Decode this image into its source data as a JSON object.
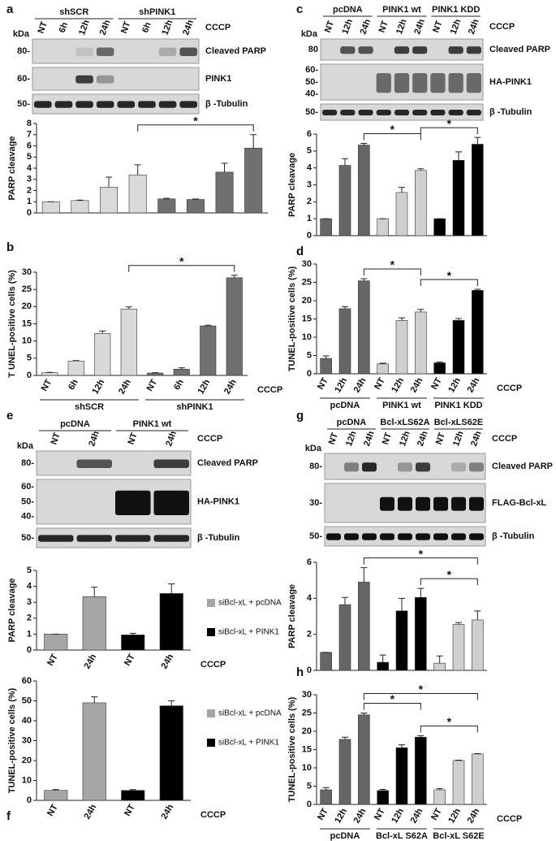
{
  "blots": [
    {
      "panel": "a",
      "kda": "kDa",
      "treatment": "CCCP",
      "headers": [
        "shSCR",
        "shPINK1"
      ],
      "lanes": [
        "NT",
        "6h",
        "12h",
        "24h",
        "NT",
        "6h",
        "12h",
        "24h"
      ],
      "rows": [
        {
          "label": "Cleaved PARP",
          "markers": [
            "80-"
          ]
        },
        {
          "label": "PINK1",
          "markers": [
            "60-"
          ]
        },
        {
          "label": "β -Tubulin",
          "markers": [
            "50-"
          ]
        }
      ]
    },
    {
      "panel": "c",
      "kda": "kDa",
      "treatment": "CCCP",
      "headers": [
        "pcDNA",
        "PINK1 wt",
        "PINK1 KDD"
      ],
      "lanes": [
        "NT",
        "12h",
        "24h",
        "NT",
        "12h",
        "24h",
        "NT",
        "12h",
        "24h"
      ],
      "rows": [
        {
          "label": "Cleaved PARP",
          "markers": [
            "80"
          ]
        },
        {
          "label": "HA-PINK1",
          "markers": [
            "60-",
            "50-",
            "40-"
          ]
        },
        {
          "label": "β -Tubulin",
          "markers": [
            "50-"
          ]
        }
      ]
    },
    {
      "panel": "e",
      "kda": "kDa",
      "treatment": "CCCP",
      "headers": [
        "pcDNA",
        "PINK1 wt"
      ],
      "lanes": [
        "NT",
        "24h",
        "NT",
        "24h"
      ],
      "rows": [
        {
          "label": "Cleaved PARP",
          "markers": [
            "80-"
          ]
        },
        {
          "label": "HA-PINK1",
          "markers": [
            "60-",
            "50-",
            "40-"
          ]
        },
        {
          "label": "β -Tubulin",
          "markers": [
            "50-"
          ]
        }
      ]
    },
    {
      "panel": "g",
      "kda": "kDa",
      "treatment": "CCCP",
      "headers": [
        "pcDNA",
        "Bcl-xLS62A",
        "Bcl-xLS62E"
      ],
      "lanes": [
        "NT",
        "12h",
        "24h",
        "NT",
        "12h",
        "24h",
        "NT",
        "12h",
        "24h"
      ],
      "rows": [
        {
          "label": "Cleaved PARP",
          "markers": [
            "80-"
          ]
        },
        {
          "label": "FLAG-Bcl-xL",
          "markers": [
            "30-"
          ]
        },
        {
          "label": "β -Tubulin",
          "markers": [
            "50-"
          ]
        }
      ]
    }
  ],
  "chart_data": [
    {
      "type": "bar",
      "ylabel": "PARP cleavage",
      "ylim": [
        0,
        8
      ],
      "yticks": [
        0,
        1,
        2,
        3,
        4,
        5,
        6,
        7,
        8
      ],
      "series": [
        {
          "color": "#d9d9d9",
          "values": [
            1,
            1.1,
            2.3,
            3.4
          ],
          "errors": [
            0,
            0.05,
            0.9,
            0.9
          ]
        },
        {
          "color": "#707070",
          "values": [
            1.25,
            1.2,
            3.65,
            5.8
          ],
          "errors": [
            0.05,
            0.05,
            0.8,
            1.2
          ]
        }
      ],
      "comparisons": [
        {
          "bars": [
            3,
            7
          ],
          "label": "*"
        }
      ]
    },
    {
      "type": "bar",
      "panel": "b",
      "ylabel": "T UNEL-positive cells (%)",
      "xlabel": "CCCP",
      "ylim": [
        0,
        30
      ],
      "yticks": [
        0,
        5,
        10,
        15,
        20,
        25,
        30
      ],
      "categories": [
        "NT",
        "6h",
        "12h",
        "24h"
      ],
      "series": [
        {
          "name": "shSCR",
          "color": "#d9d9d9",
          "values": [
            0.8,
            4.2,
            12.2,
            19.3
          ],
          "errors": [
            0.1,
            0.1,
            0.7,
            0.6
          ]
        },
        {
          "name": "shPINK1",
          "color": "#707070",
          "values": [
            0.7,
            1.8,
            14.4,
            28.4
          ],
          "errors": [
            0.1,
            0.4,
            0.2,
            0.7
          ]
        }
      ],
      "comparisons": [
        {
          "bars": [
            3,
            7
          ],
          "label": "*"
        }
      ]
    },
    {
      "type": "bar",
      "ylabel": "PARP cleavage",
      "ylim": [
        0,
        6
      ],
      "yticks": [
        0,
        1,
        2,
        3,
        4,
        5,
        6
      ],
      "series": [
        {
          "color": "#666666",
          "values": [
            1,
            4.15,
            5.35
          ],
          "errors": [
            0,
            0.4,
            0.1
          ]
        },
        {
          "color": "#cfcfcf",
          "values": [
            1,
            2.55,
            3.85
          ],
          "errors": [
            0,
            0.3,
            0.1
          ]
        },
        {
          "color": "#000000",
          "values": [
            1,
            4.45,
            5.4
          ],
          "errors": [
            0,
            0.5,
            0.4
          ]
        }
      ],
      "comparisons": [
        {
          "bars": [
            2,
            5
          ],
          "label": "*"
        },
        {
          "bars": [
            5,
            8
          ],
          "label": "*"
        }
      ]
    },
    {
      "type": "bar",
      "panel": "d",
      "ylabel": "TUNEL-positive cells (%)",
      "xlabel": "CCCP",
      "ylim": [
        0,
        30
      ],
      "yticks": [
        0,
        5,
        10,
        15,
        20,
        25,
        30
      ],
      "categories": [
        "NT",
        "12h",
        "24h"
      ],
      "series": [
        {
          "name": "pcDNA",
          "color": "#666666",
          "values": [
            4.2,
            17.8,
            25.4
          ],
          "errors": [
            0.7,
            0.6,
            0.6
          ]
        },
        {
          "name": "PINK1 wt",
          "color": "#cfcfcf",
          "values": [
            2.7,
            14.6,
            16.9
          ],
          "errors": [
            0.2,
            0.7,
            0.7
          ]
        },
        {
          "name": "PINK1 KDD",
          "color": "#000000",
          "values": [
            3.0,
            14.6,
            22.8
          ],
          "errors": [
            0.2,
            0.5,
            0.3
          ]
        }
      ],
      "comparisons": [
        {
          "bars": [
            2,
            5
          ],
          "label": "*"
        },
        {
          "bars": [
            5,
            8
          ],
          "label": "*"
        }
      ]
    },
    {
      "type": "bar",
      "ylabel": "PARP cleavage",
      "xlabel": "CCCP",
      "ylim": [
        0,
        5
      ],
      "yticks": [
        0,
        1,
        2,
        3,
        4,
        5
      ],
      "legend": "right",
      "categories": [
        "NT",
        "24h"
      ],
      "series": [
        {
          "name": "siBcl-xL + pcDNA",
          "color": "#a6a6a6",
          "values": [
            1,
            3.35
          ],
          "errors": [
            0,
            0.6
          ]
        },
        {
          "name": "siBcl-xL + PINK1",
          "color": "#000000",
          "values": [
            0.95,
            3.55
          ],
          "errors": [
            0.1,
            0.6
          ]
        }
      ]
    },
    {
      "type": "bar",
      "panel": "f",
      "ylabel": "TUNEL-positive cells (%)",
      "xlabel": "CCCP",
      "ylim": [
        0,
        60
      ],
      "yticks": [
        0,
        10,
        20,
        30,
        40,
        50,
        60
      ],
      "legend": "right",
      "categories": [
        "NT",
        "24h"
      ],
      "series": [
        {
          "name": "siBcl-xL + pcDNA",
          "color": "#a6a6a6",
          "values": [
            5,
            49
          ],
          "errors": [
            0.4,
            3
          ]
        },
        {
          "name": "siBcl-xL + PINK1",
          "color": "#000000",
          "values": [
            5,
            47.5
          ],
          "errors": [
            0.4,
            2.5
          ]
        }
      ]
    },
    {
      "type": "bar",
      "ylabel": "PARP cleavage",
      "ylim": [
        0,
        6
      ],
      "yticks": [
        0,
        2,
        4,
        6
      ],
      "series": [
        {
          "color": "#666666",
          "values": [
            1,
            3.65,
            4.9
          ],
          "errors": [
            0,
            0.4,
            0.8
          ]
        },
        {
          "color": "#000000",
          "values": [
            0.45,
            3.3,
            4.05
          ],
          "errors": [
            0.4,
            0.7,
            0.5
          ]
        },
        {
          "color": "#cfcfcf",
          "values": [
            0.4,
            2.55,
            2.8
          ],
          "errors": [
            0.4,
            0.1,
            0.5
          ]
        }
      ],
      "comparisons": [
        {
          "bars": [
            5,
            8
          ],
          "label": "*"
        },
        {
          "bars": [
            2,
            8
          ],
          "label": "*"
        }
      ]
    },
    {
      "type": "bar",
      "panel": "h",
      "ylabel": "TUNEL-positive cells (%)",
      "xlabel": "CCCP",
      "ylim": [
        0,
        30
      ],
      "yticks": [
        0,
        5,
        10,
        15,
        20,
        25,
        30
      ],
      "categories": [
        "NT",
        "12h",
        "24h"
      ],
      "series": [
        {
          "name": "pcDNA",
          "color": "#666666",
          "values": [
            4,
            17.8,
            24.5
          ],
          "errors": [
            0.6,
            0.6,
            0.5
          ]
        },
        {
          "name": "Bcl-xL S62A",
          "color": "#000000",
          "values": [
            3.8,
            15.5,
            18.4
          ],
          "errors": [
            0.3,
            0.8,
            0.4
          ]
        },
        {
          "name": "Bcl-xL S62E",
          "color": "#cfcfcf",
          "values": [
            4,
            12,
            13.8
          ],
          "errors": [
            0.3,
            0.1,
            0.1
          ]
        }
      ],
      "comparisons": [
        {
          "bars": [
            5,
            8
          ],
          "label": "*"
        },
        {
          "bars": [
            2,
            5
          ],
          "label": "*"
        },
        {
          "bars": [
            2,
            8
          ],
          "label": "*"
        }
      ]
    }
  ]
}
